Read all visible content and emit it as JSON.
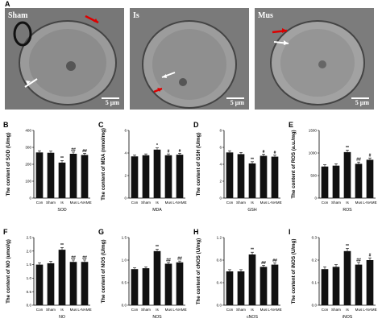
{
  "figure": {
    "panel_a": "A",
    "images": [
      {
        "label": "Sham",
        "scale": "5 μm"
      },
      {
        "label": "Is",
        "scale": "5 μm"
      },
      {
        "label": "Mus",
        "scale": "5 μm"
      }
    ]
  },
  "chart_data": [
    {
      "panel": "B",
      "type": "bar",
      "ylabel": "The content of SOD (U/mg)",
      "xlabel": "SOD",
      "categories": [
        "Con",
        "Sham",
        "Is",
        "Mus",
        "L-NAME"
      ],
      "values": [
        270,
        268,
        210,
        262,
        255
      ],
      "errors": [
        10,
        10,
        12,
        10,
        10
      ],
      "annotations": [
        "",
        "",
        "**",
        "##",
        "##"
      ],
      "ylim": [
        0,
        400
      ],
      "yticks": [
        0,
        100,
        200,
        300,
        400
      ],
      "yticklabels": [
        "0",
        "100",
        "200",
        "300",
        "400"
      ]
    },
    {
      "panel": "C",
      "type": "bar",
      "ylabel": "The content of MDA (nmol/mg)",
      "xlabel": "MDA",
      "categories": [
        "Con",
        "Sham",
        "Is",
        "Mus",
        "L-NAME"
      ],
      "values": [
        3.7,
        3.8,
        4.3,
        3.8,
        3.85
      ],
      "errors": [
        0.12,
        0.12,
        0.15,
        0.12,
        0.12
      ],
      "annotations": [
        "",
        "",
        "*",
        "#",
        "#"
      ],
      "ylim": [
        0,
        6
      ],
      "yticks": [
        0,
        2,
        4,
        6
      ],
      "yticklabels": [
        "0",
        "2",
        "4",
        "6"
      ]
    },
    {
      "panel": "D",
      "type": "bar",
      "ylabel": "The content of GSH (U/mg)",
      "xlabel": "GSH",
      "categories": [
        "Con",
        "Sham",
        "Is",
        "Mus",
        "L-NAME"
      ],
      "values": [
        5.4,
        5.2,
        4.1,
        5.0,
        4.9
      ],
      "errors": [
        0.2,
        0.2,
        0.2,
        0.2,
        0.2
      ],
      "annotations": [
        "",
        "",
        "**",
        "#",
        "#"
      ],
      "ylim": [
        0,
        8
      ],
      "yticks": [
        0,
        2,
        4,
        6,
        8
      ],
      "yticklabels": [
        "0",
        "2",
        "4",
        "6",
        "8"
      ]
    },
    {
      "panel": "E",
      "type": "bar",
      "ylabel": "The content of ROS (a.u./mg)",
      "xlabel": "ROS",
      "categories": [
        "Con",
        "Sham",
        "Is",
        "Mus",
        "L-NAME"
      ],
      "values": [
        700,
        720,
        1020,
        760,
        850
      ],
      "errors": [
        40,
        40,
        45,
        40,
        40
      ],
      "annotations": [
        "",
        "",
        "**",
        "##",
        "#"
      ],
      "ylim": [
        0,
        1500
      ],
      "yticks": [
        0,
        500,
        1000,
        1500
      ],
      "yticklabels": [
        "0",
        "500",
        "1000",
        "1500"
      ]
    },
    {
      "panel": "F",
      "type": "bar",
      "ylabel": "The content of NO (umol/g)",
      "xlabel": "NO",
      "categories": [
        "Con",
        "Sham",
        "Is",
        "Mus",
        "L-NAME"
      ],
      "values": [
        1.5,
        1.55,
        2.05,
        1.6,
        1.6
      ],
      "errors": [
        0.07,
        0.07,
        0.08,
        0.07,
        0.07
      ],
      "annotations": [
        "",
        "",
        "**",
        "##",
        "##"
      ],
      "ylim": [
        0,
        2.5
      ],
      "yticks": [
        0,
        0.5,
        1.0,
        1.5,
        2.0,
        2.5
      ],
      "yticklabels": [
        "0.0",
        "0.5",
        "1.0",
        "1.5",
        "2.0",
        "2.5"
      ]
    },
    {
      "panel": "G",
      "type": "bar",
      "ylabel": "The content of NOS (U/mg)",
      "xlabel": "NOS",
      "categories": [
        "Con",
        "Sham",
        "Is",
        "Mus",
        "L-NAME"
      ],
      "values": [
        0.8,
        0.82,
        1.2,
        0.92,
        0.95
      ],
      "errors": [
        0.03,
        0.03,
        0.04,
        0.03,
        0.03
      ],
      "annotations": [
        "",
        "",
        "**",
        "##",
        "##"
      ],
      "ylim": [
        0,
        1.5
      ],
      "yticks": [
        0,
        0.5,
        1.0,
        1.5
      ],
      "yticklabels": [
        "0.0",
        "0.5",
        "1.0",
        "1.5"
      ]
    },
    {
      "panel": "H",
      "type": "bar",
      "ylabel": "The content of cNOS (U/mg)",
      "xlabel": "cNOS",
      "categories": [
        "Con",
        "Sham",
        "Is",
        "Mus",
        "L-NAME"
      ],
      "values": [
        0.6,
        0.6,
        0.9,
        0.68,
        0.72
      ],
      "errors": [
        0.03,
        0.03,
        0.04,
        0.03,
        0.03
      ],
      "annotations": [
        "",
        "",
        "**",
        "##",
        "##"
      ],
      "ylim": [
        0,
        1.2
      ],
      "yticks": [
        0,
        0.4,
        0.8,
        1.2
      ],
      "yticklabels": [
        "0.0",
        "0.4",
        "0.8",
        "1.2"
      ]
    },
    {
      "panel": "I",
      "type": "bar",
      "ylabel": "The content of iNOS (U/mg)",
      "xlabel": "iNOS",
      "categories": [
        "Con",
        "Sham",
        "Is",
        "Mus",
        "L-NAME"
      ],
      "values": [
        0.16,
        0.17,
        0.24,
        0.18,
        0.2
      ],
      "errors": [
        0.01,
        0.01,
        0.012,
        0.01,
        0.01
      ],
      "annotations": [
        "",
        "",
        "**",
        "##",
        "#"
      ],
      "ylim": [
        0,
        0.3
      ],
      "yticks": [
        0,
        0.1,
        0.2,
        0.3
      ],
      "yticklabels": [
        "0.0",
        "0.1",
        "0.2",
        "0.3"
      ]
    }
  ]
}
